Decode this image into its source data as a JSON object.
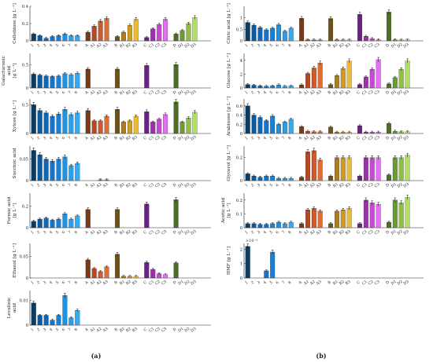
{
  "figure": {
    "panel_labels": [
      "(a)",
      "(b)"
    ]
  },
  "colors": {
    "numbered": [
      "#0a3d66",
      "#0f5a96",
      "#1565b0",
      "#1a72c4",
      "#1c7fd2",
      "#2590dc",
      "#2f9ce4",
      "#3aa8ec"
    ],
    "A": [
      "#7a3a16",
      "#b84820",
      "#cf5a2a",
      "#e06c35"
    ],
    "B": [
      "#6e5418",
      "#b07c1c",
      "#d29a22",
      "#eebb34"
    ],
    "C": [
      "#6a2380",
      "#9a32a8",
      "#c44ad0",
      "#e070ef"
    ],
    "D": [
      "#4e6e22",
      "#6a9c2e",
      "#8cc23c",
      "#aee25a"
    ],
    "axis": "#222222",
    "errorbar": "#111111"
  },
  "chart_data": [
    {
      "id": "cellobiose",
      "type": "bar",
      "column": "a",
      "ylabel": [
        "Cellobiose [g L⁻¹]"
      ],
      "yticks": [
        "0.4",
        "0.2",
        "0"
      ],
      "ylim": [
        0,
        0.4
      ],
      "categories": [
        "1",
        "2",
        "3",
        "4",
        "5",
        "6",
        "7",
        "8",
        "A",
        "A1",
        "A2",
        "A3",
        "B",
        "B1",
        "B2",
        "B3",
        "C",
        "C1",
        "C2",
        "C3",
        "D",
        "D1",
        "D2",
        "D3"
      ],
      "values": [
        0.08,
        0.06,
        0.03,
        0.05,
        0.06,
        0.08,
        0.06,
        0.06,
        0.1,
        0.17,
        0.23,
        0.26,
        0.05,
        0.1,
        0.18,
        0.25,
        0.04,
        0.14,
        0.19,
        0.25,
        0.08,
        0.12,
        0.2,
        0.27
      ]
    },
    {
      "id": "galacturonic",
      "type": "bar",
      "column": "a",
      "ylabel": [
        "Galacturonic",
        "acid",
        "[g L⁻¹]"
      ],
      "yticks": [
        "0.5",
        "0"
      ],
      "ylim": [
        0,
        0.75
      ],
      "categories": [
        "1",
        "2",
        "3",
        "4",
        "5",
        "6",
        "7",
        "8",
        "A",
        "A1",
        "A2",
        "A3",
        "B",
        "B1",
        "B2",
        "B3",
        "C",
        "C1",
        "C2",
        "C3",
        "D",
        "D1",
        "D2",
        "D3"
      ],
      "values": [
        0.3,
        0.28,
        0.26,
        0.25,
        0.26,
        0.31,
        0.29,
        0.32,
        0.41,
        0,
        0,
        0,
        0.41,
        0,
        0,
        0,
        0.49,
        0,
        0,
        0,
        0.51,
        0,
        0,
        0
      ]
    },
    {
      "id": "xylose",
      "type": "bar",
      "column": "a",
      "ylabel": [
        "Xylose [g L⁻¹]"
      ],
      "yticks": [
        "0.5",
        "0"
      ],
      "ylim": [
        0,
        0.6
      ],
      "categories": [
        "1",
        "2",
        "3",
        "4",
        "5",
        "6",
        "7",
        "8",
        "A",
        "A1",
        "A2",
        "A3",
        "B",
        "B1",
        "B2",
        "B3",
        "C",
        "C1",
        "C2",
        "C3",
        "D",
        "D1",
        "D2",
        "D3"
      ],
      "values": [
        0.5,
        0.4,
        0.36,
        0.3,
        0.34,
        0.42,
        0.33,
        0.36,
        0.4,
        0.22,
        0.22,
        0.3,
        0.42,
        0.2,
        0.22,
        0.3,
        0.38,
        0.2,
        0.25,
        0.33,
        0.55,
        0.2,
        0.27,
        0.37
      ]
    },
    {
      "id": "succinic",
      "type": "bar",
      "column": "a",
      "ylabel": [
        "Succinic acid"
      ],
      "yticks": [
        "0.05",
        "0"
      ],
      "ylim": [
        0,
        0.08
      ],
      "categories": [
        "1",
        "2",
        "3",
        "4",
        "5",
        "6",
        "7",
        "8",
        "A",
        "A1",
        "A2",
        "A3",
        "B",
        "B1",
        "B2",
        "B3",
        "C",
        "C1",
        "C2",
        "C3",
        "D",
        "D1",
        "D2",
        "D3"
      ],
      "values": [
        0.07,
        0.06,
        0.05,
        0.045,
        0.05,
        0.055,
        0.035,
        0.04,
        0,
        0,
        0.002,
        0.002,
        0,
        0,
        0,
        0,
        0,
        0,
        0,
        0,
        0,
        0,
        0,
        0
      ]
    },
    {
      "id": "formic",
      "type": "bar",
      "column": "a",
      "ylabel": [
        "Formic acid",
        "[g L⁻¹]"
      ],
      "yticks": [
        "0.2",
        "0"
      ],
      "ylim": [
        0,
        0.32
      ],
      "categories": [
        "1",
        "2",
        "3",
        "4",
        "5",
        "6",
        "7",
        "8",
        "A",
        "A1",
        "A2",
        "A3",
        "B",
        "B1",
        "B2",
        "B3",
        "C",
        "C1",
        "C2",
        "C3",
        "D",
        "D1",
        "D2",
        "D3"
      ],
      "values": [
        0.06,
        0.08,
        0.09,
        0.07,
        0.08,
        0.13,
        0.08,
        0.11,
        0.17,
        0,
        0,
        0,
        0.17,
        0,
        0,
        0,
        0.22,
        0,
        0,
        0,
        0.26,
        0,
        0,
        0
      ]
    },
    {
      "id": "ethanol",
      "type": "bar",
      "column": "a",
      "ylabel": [
        "Ethanol [g L⁻¹]"
      ],
      "yticks": [
        "0.05",
        "0"
      ],
      "ylim": [
        0,
        0.08
      ],
      "categories": [
        "1",
        "2",
        "3",
        "4",
        "5",
        "6",
        "7",
        "8",
        "A",
        "A1",
        "A2",
        "A3",
        "B",
        "B1",
        "B2",
        "B3",
        "C",
        "C1",
        "C2",
        "C3",
        "D",
        "D1",
        "D2",
        "D3"
      ],
      "values": [
        0,
        0,
        0,
        0,
        0,
        0,
        0,
        0,
        0.042,
        0.022,
        0.015,
        0.026,
        0.055,
        0.004,
        0.004,
        0.004,
        0.036,
        0.02,
        0.01,
        0.008,
        0.035,
        0,
        0,
        0
      ]
    },
    {
      "id": "levulinic",
      "type": "bar",
      "column": "a",
      "ylabel": [
        "Levulinic",
        "acid"
      ],
      "yticks": [
        "0.01",
        "0"
      ],
      "ylim": [
        0,
        0.014
      ],
      "categories": [
        "1",
        "2",
        "3",
        "4",
        "5",
        "6",
        "7",
        "8",
        "A",
        "A1",
        "A2",
        "A3",
        "B",
        "B1",
        "B2",
        "B3",
        "C",
        "C1",
        "C2",
        "C3",
        "D",
        "D1",
        "D2",
        "D3"
      ],
      "values": [
        0.009,
        0.004,
        0.004,
        0.002,
        0.004,
        0.012,
        0.003,
        0.006,
        0,
        0,
        0,
        0,
        0,
        0,
        0,
        0,
        0,
        0,
        0,
        0,
        0,
        0,
        0,
        0
      ]
    },
    {
      "id": "citric",
      "type": "bar",
      "column": "b",
      "ylabel": [
        "Citric acid [g L⁻¹]"
      ],
      "yticks": [
        "1",
        "0.5",
        "0"
      ],
      "ylim": [
        0,
        1.5
      ],
      "categories": [
        "1",
        "2",
        "3",
        "4",
        "5",
        "6",
        "7",
        "8",
        "A",
        "A1",
        "A2",
        "A3",
        "B",
        "B1",
        "B2",
        "B3",
        "C",
        "C1",
        "C2",
        "C3",
        "D",
        "D1",
        "D2",
        "D3"
      ],
      "values": [
        0.8,
        0.68,
        0.58,
        0.48,
        0.55,
        0.7,
        0.42,
        0.55,
        0.98,
        0.05,
        0.04,
        0.04,
        0.97,
        0.05,
        0.04,
        0.04,
        1.15,
        0.2,
        0.1,
        0.05,
        1.25,
        0.05,
        0.04,
        0.04
      ]
    },
    {
      "id": "glucose",
      "type": "bar",
      "column": "b",
      "ylabel": [
        "Glucose [g L⁻¹]"
      ],
      "yticks": [
        "4",
        "2",
        "0"
      ],
      "ylim": [
        0,
        5
      ],
      "categories": [
        "1",
        "2",
        "3",
        "4",
        "5",
        "6",
        "7",
        "8",
        "A",
        "A1",
        "A2",
        "A3",
        "B",
        "B1",
        "B2",
        "B3",
        "C",
        "C1",
        "C2",
        "C3",
        "D",
        "D1",
        "D2",
        "D3"
      ],
      "values": [
        0.5,
        0.4,
        0.3,
        0.25,
        0.3,
        0.45,
        0.25,
        0.3,
        0.45,
        2.1,
        2.9,
        3.6,
        0.5,
        1.8,
        2.8,
        3.9,
        0.5,
        1.6,
        2.7,
        4.1,
        0.6,
        1.5,
        2.7,
        3.9
      ]
    },
    {
      "id": "arabinose",
      "type": "bar",
      "column": "b",
      "ylabel": [
        "Arabinose [g L⁻¹]"
      ],
      "yticks": [
        "0.6",
        "0.4",
        "0.2",
        "0"
      ],
      "ylim": [
        0,
        0.75
      ],
      "categories": [
        "1",
        "2",
        "3",
        "4",
        "5",
        "6",
        "7",
        "8",
        "A",
        "A1",
        "A2",
        "A3",
        "B",
        "B1",
        "B2",
        "B3",
        "C",
        "C1",
        "C2",
        "C3",
        "D",
        "D1",
        "D2",
        "D3"
      ],
      "values": [
        0.6,
        0.4,
        0.35,
        0.28,
        0.38,
        0.2,
        0.25,
        0.31,
        0.15,
        0.05,
        0.04,
        0.04,
        0.14,
        0.03,
        0.03,
        0.03,
        0.17,
        0.03,
        0.03,
        0.03,
        0.22,
        0.05,
        0.04,
        0.04
      ]
    },
    {
      "id": "glycerol",
      "type": "bar",
      "column": "b",
      "ylabel": [
        "Glycerol [g L⁻¹]"
      ],
      "yticks": [
        "0.2",
        "0"
      ],
      "ylim": [
        0,
        0.3
      ],
      "categories": [
        "1",
        "2",
        "3",
        "4",
        "5",
        "6",
        "7",
        "8",
        "A",
        "A1",
        "A2",
        "A3",
        "B",
        "B1",
        "B2",
        "B3",
        "C",
        "C1",
        "C2",
        "C3",
        "D",
        "D1",
        "D2",
        "D3"
      ],
      "values": [
        0.06,
        0.04,
        0.03,
        0.04,
        0.04,
        0.02,
        0.02,
        0.02,
        0.03,
        0.25,
        0.26,
        0.18,
        0.04,
        0.2,
        0.2,
        0.2,
        0.04,
        0.2,
        0.2,
        0.2,
        0.05,
        0.2,
        0.2,
        0.22
      ]
    },
    {
      "id": "acetic",
      "type": "bar",
      "column": "b",
      "ylabel": [
        "Acetic acid",
        "[g L⁻¹]"
      ],
      "yticks": [
        "0.2",
        "0.1",
        "0"
      ],
      "ylim": [
        0,
        0.25
      ],
      "categories": [
        "1",
        "2",
        "3",
        "4",
        "5",
        "6",
        "7",
        "8",
        "A",
        "A1",
        "A2",
        "A3",
        "B",
        "B1",
        "B2",
        "B3",
        "C",
        "C1",
        "C2",
        "C3",
        "D",
        "D1",
        "D2",
        "D3"
      ],
      "values": [
        0.03,
        0.03,
        0.025,
        0.025,
        0.03,
        0.04,
        0.03,
        0.04,
        0.03,
        0.13,
        0.14,
        0.12,
        0.03,
        0.12,
        0.13,
        0.14,
        0.03,
        0.2,
        0.18,
        0.17,
        0.04,
        0.2,
        0.18,
        0.22
      ]
    },
    {
      "id": "hmf",
      "type": "bar",
      "column": "b",
      "ylabel": [
        "HMF [g L⁻¹]"
      ],
      "yticks": [
        "2",
        "1",
        "0"
      ],
      "yexponent": "×10⁻³",
      "ylim": [
        0,
        2.4
      ],
      "categories": [
        "1",
        "2",
        "3",
        "4",
        "5",
        "6",
        "7",
        "8",
        "A",
        "A1",
        "A2",
        "A3",
        "B",
        "B1",
        "B2",
        "B3",
        "C",
        "C1",
        "C2",
        "C3",
        "D",
        "D1",
        "D2",
        "D3"
      ],
      "values": [
        2.2,
        0,
        0,
        0.5,
        1.8,
        0,
        0,
        0,
        0,
        0,
        0,
        0,
        0,
        0,
        0,
        0,
        0,
        0,
        0,
        0,
        0,
        0,
        0,
        0
      ]
    }
  ]
}
